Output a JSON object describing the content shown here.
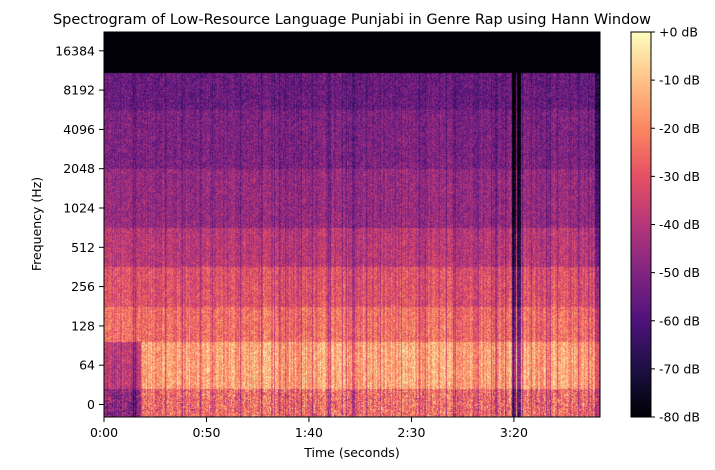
{
  "chart_data": {
    "type": "heatmap",
    "title": "Spectrogram of Low-Resource Language Punjabi in Genre Rap using Hann Window",
    "xlabel": "Time (seconds)",
    "ylabel": "Frequency (Hz)",
    "x_scale": "time",
    "y_scale": "log",
    "xlim_seconds": [
      0,
      242
    ],
    "x_ticks": [
      {
        "value": 0,
        "label": "0:00"
      },
      {
        "value": 50,
        "label": "0:50"
      },
      {
        "value": 100,
        "label": "1:40"
      },
      {
        "value": 150,
        "label": "2:30"
      },
      {
        "value": 200,
        "label": "3:20"
      }
    ],
    "y_ticks": [
      {
        "value": 0,
        "label": "0"
      },
      {
        "value": 64,
        "label": "64"
      },
      {
        "value": 128,
        "label": "128"
      },
      {
        "value": 256,
        "label": "256"
      },
      {
        "value": 512,
        "label": "512"
      },
      {
        "value": 1024,
        "label": "1024"
      },
      {
        "value": 2048,
        "label": "2048"
      },
      {
        "value": 4096,
        "label": "4096"
      },
      {
        "value": 8192,
        "label": "8192"
      },
      {
        "value": 16384,
        "label": "16384"
      }
    ],
    "colormap": "magma",
    "colorbar": {
      "range_db": [
        -80,
        0
      ],
      "ticks": [
        {
          "value": 0,
          "label": "+0 dB"
        },
        {
          "value": -10,
          "label": "-10 dB"
        },
        {
          "value": -20,
          "label": "-20 dB"
        },
        {
          "value": -30,
          "label": "-30 dB"
        },
        {
          "value": -40,
          "label": "-40 dB"
        },
        {
          "value": -50,
          "label": "-50 dB"
        },
        {
          "value": -60,
          "label": "-60 dB"
        },
        {
          "value": -70,
          "label": "-70 dB"
        },
        {
          "value": -80,
          "label": "-80 dB"
        }
      ]
    },
    "features": {
      "energy_cutoff_hz": 11000,
      "intro_end_seconds": 18,
      "dropouts_seconds": [
        200,
        202
      ]
    }
  }
}
